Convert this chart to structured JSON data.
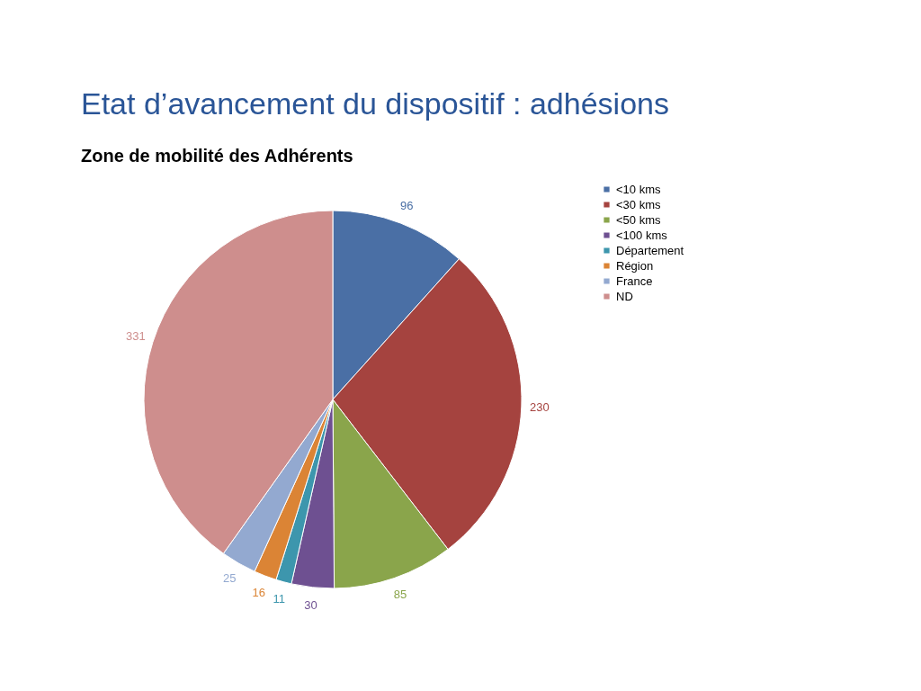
{
  "chart_data": {
    "type": "pie",
    "title": "Etat d’avancement du dispositif : adhésions",
    "subtitle": "Zone de mobilité des Adhérents",
    "categories": [
      "<10 kms",
      "<30 kms",
      "<50 kms",
      "<100 kms",
      "Département",
      "Région",
      "France",
      "ND"
    ],
    "values": [
      96,
      230,
      85,
      30,
      11,
      16,
      25,
      331
    ],
    "colors": [
      "#4a6fa5",
      "#a5433f",
      "#8aa54b",
      "#6e5091",
      "#3d96ad",
      "#db8435",
      "#93a9d0",
      "#ce8e8d"
    ],
    "data_labels": true,
    "legend": "right"
  }
}
